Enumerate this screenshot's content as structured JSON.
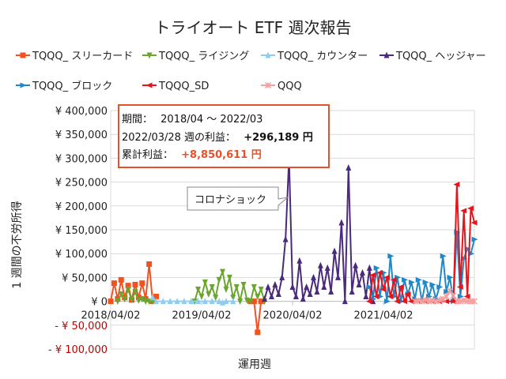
{
  "chart_data": {
    "type": "line",
    "title": "トライオート ETF 週次報告",
    "xlabel": "運用週",
    "ylabel": "1 週間の不労所得",
    "xlim": [
      "2018-04-02",
      "2022-03-28"
    ],
    "ylim": [
      -100000,
      400000
    ],
    "grid": true,
    "legend_placement": "top",
    "x_ticks": [
      {
        "date": "2018-04-02",
        "label": "2018/04/02"
      },
      {
        "date": "2019-04-01",
        "label": "2019/04/02"
      },
      {
        "date": "2020-03-30",
        "label": "2020/04/02"
      },
      {
        "date": "2021-03-29",
        "label": "2021/04/02"
      }
    ],
    "y_ticks": [
      {
        "value": 400000,
        "label": "¥ 400,000"
      },
      {
        "value": 350000,
        "label": "¥ 350,000"
      },
      {
        "value": 300000,
        "label": "¥ 300,000"
      },
      {
        "value": 250000,
        "label": "¥ 250,000"
      },
      {
        "value": 200000,
        "label": "¥ 200,000"
      },
      {
        "value": 150000,
        "label": "¥ 150,000"
      },
      {
        "value": 100000,
        "label": "¥ 100,000"
      },
      {
        "value": 50000,
        "label": "¥ 50,000"
      },
      {
        "value": 0,
        "label": "¥ 0"
      },
      {
        "value": -50000,
        "label": "- ¥ 50,000"
      },
      {
        "value": -100000,
        "label": "- ¥ 100,000"
      }
    ],
    "negative_label_color": "#c00000",
    "series": [
      {
        "name": "TQQQ_ スリーカード",
        "color": "#f4511e",
        "marker": "square",
        "points": [
          [
            "2018-04-02",
            0
          ],
          [
            "2018-04-16",
            38000
          ],
          [
            "2018-04-30",
            5000
          ],
          [
            "2018-05-14",
            45000
          ],
          [
            "2018-05-28",
            8000
          ],
          [
            "2018-06-11",
            33000
          ],
          [
            "2018-06-25",
            3000
          ],
          [
            "2018-07-09",
            35000
          ],
          [
            "2018-07-23",
            8000
          ],
          [
            "2018-08-06",
            38000
          ],
          [
            "2018-08-20",
            5000
          ],
          [
            "2018-09-03",
            78000
          ],
          [
            "2018-09-17",
            0
          ],
          [
            "2018-10-01",
            10000
          ],
          null,
          [
            "2019-10-14",
            0
          ],
          [
            "2019-10-28",
            0
          ],
          [
            "2019-11-11",
            -65000
          ],
          [
            "2019-11-25",
            0
          ]
        ]
      },
      {
        "name": "TQQQ_ ライジング",
        "color": "#6aa62e",
        "marker": "triangle-down",
        "points": [
          [
            "2018-04-30",
            0
          ],
          [
            "2018-05-14",
            15000
          ],
          [
            "2018-05-28",
            5000
          ],
          [
            "2018-06-11",
            25000
          ],
          [
            "2018-06-25",
            3000
          ],
          [
            "2018-07-09",
            20000
          ],
          [
            "2018-07-23",
            2000
          ],
          [
            "2018-08-06",
            5000
          ],
          [
            "2018-08-20",
            0
          ],
          [
            "2018-09-03",
            0
          ],
          [
            "2018-09-17",
            0
          ],
          null,
          [
            "2019-03-04",
            0
          ],
          [
            "2019-03-18",
            25000
          ],
          [
            "2019-04-01",
            10000
          ],
          [
            "2019-04-15",
            40000
          ],
          [
            "2019-04-29",
            15000
          ],
          [
            "2019-05-13",
            30000
          ],
          [
            "2019-05-27",
            8000
          ],
          [
            "2019-06-10",
            45000
          ],
          [
            "2019-06-24",
            62000
          ],
          [
            "2019-07-08",
            25000
          ],
          [
            "2019-07-22",
            50000
          ],
          [
            "2019-08-05",
            8000
          ],
          [
            "2019-08-19",
            30000
          ],
          [
            "2019-09-02",
            0
          ],
          [
            "2019-09-16",
            35000
          ],
          [
            "2019-09-30",
            2000
          ],
          [
            "2019-10-14",
            0
          ],
          [
            "2019-10-28",
            30000
          ],
          [
            "2019-11-11",
            10000
          ],
          [
            "2019-11-25",
            25000
          ],
          [
            "2019-12-09",
            0
          ]
        ]
      },
      {
        "name": "TQQQ_ カウンター",
        "color": "#8fcdf0",
        "marker": "triangle-up",
        "points": [
          [
            "2018-09-17",
            8000
          ],
          [
            "2018-10-01",
            0
          ],
          [
            "2018-10-29",
            0
          ],
          [
            "2018-11-26",
            0
          ],
          [
            "2018-12-24",
            0
          ],
          [
            "2019-01-21",
            0
          ],
          [
            "2019-02-18",
            0
          ],
          [
            "2019-03-18",
            0
          ],
          [
            "2019-04-15",
            0
          ],
          [
            "2019-05-13",
            0
          ],
          [
            "2019-06-10",
            0
          ],
          [
            "2019-06-24",
            -3000
          ],
          [
            "2019-07-08",
            0
          ],
          [
            "2019-08-05",
            0
          ]
        ]
      },
      {
        "name": "TQQQ_ ヘッジャー",
        "color": "#4b2a7b",
        "marker": "triangle-up",
        "points": [
          [
            "2019-12-09",
            5000
          ],
          [
            "2019-12-23",
            30000
          ],
          [
            "2020-01-06",
            10000
          ],
          [
            "2020-01-20",
            35000
          ],
          [
            "2020-02-03",
            15000
          ],
          [
            "2020-02-17",
            50000
          ],
          [
            "2020-03-02",
            130000
          ],
          [
            "2020-03-16",
            300000
          ],
          [
            "2020-03-30",
            30000
          ],
          [
            "2020-04-13",
            10000
          ],
          [
            "2020-04-27",
            85000
          ],
          [
            "2020-05-11",
            5000
          ],
          [
            "2020-05-25",
            30000
          ],
          [
            "2020-06-08",
            15000
          ],
          [
            "2020-06-22",
            50000
          ],
          [
            "2020-07-06",
            20000
          ],
          [
            "2020-07-20",
            75000
          ],
          [
            "2020-08-03",
            30000
          ],
          [
            "2020-08-17",
            70000
          ],
          [
            "2020-08-31",
            20000
          ],
          [
            "2020-09-14",
            105000
          ],
          [
            "2020-09-28",
            50000
          ],
          [
            "2020-10-12",
            165000
          ],
          [
            "2020-10-26",
            0
          ],
          [
            "2020-11-09",
            280000
          ],
          [
            "2020-11-23",
            20000
          ],
          [
            "2020-12-07",
            75000
          ],
          [
            "2020-12-21",
            35000
          ],
          [
            "2021-01-04",
            60000
          ],
          [
            "2021-01-18",
            10000
          ],
          [
            "2021-02-01",
            70000
          ],
          [
            "2021-02-15",
            0
          ]
        ]
      },
      {
        "name": "TQQQ_ ブロック",
        "color": "#1e88c8",
        "marker": "triangle-right",
        "points": [
          [
            "2021-02-01",
            30000
          ],
          [
            "2021-02-15",
            5000
          ],
          [
            "2021-03-01",
            70000
          ],
          [
            "2021-03-15",
            10000
          ],
          [
            "2021-03-29",
            60000
          ],
          [
            "2021-04-12",
            0
          ],
          [
            "2021-04-26",
            95000
          ],
          [
            "2021-05-10",
            10000
          ],
          [
            "2021-05-24",
            50000
          ],
          [
            "2021-06-07",
            0
          ],
          [
            "2021-06-21",
            45000
          ],
          [
            "2021-07-05",
            15000
          ],
          [
            "2021-07-19",
            40000
          ],
          [
            "2021-08-02",
            5000
          ],
          [
            "2021-08-16",
            45000
          ],
          [
            "2021-08-30",
            0
          ],
          [
            "2021-09-13",
            40000
          ],
          [
            "2021-09-27",
            10000
          ],
          [
            "2021-10-11",
            35000
          ],
          [
            "2021-10-25",
            5000
          ],
          [
            "2021-11-08",
            30000
          ],
          [
            "2021-11-22",
            95000
          ],
          [
            "2021-12-06",
            20000
          ],
          [
            "2021-12-20",
            50000
          ],
          [
            "2022-01-03",
            0
          ],
          [
            "2022-01-17",
            145000
          ],
          [
            "2022-01-31",
            10000
          ],
          [
            "2022-02-14",
            90000
          ],
          [
            "2022-02-28",
            110000
          ],
          [
            "2022-03-14",
            100000
          ],
          [
            "2022-03-28",
            130000
          ]
        ]
      },
      {
        "name": "TQQQ_SD",
        "color": "#e8141c",
        "marker": "triangle-left",
        "points": [
          [
            "2021-02-01",
            0
          ],
          [
            "2021-02-15",
            55000
          ],
          [
            "2021-03-01",
            10000
          ],
          [
            "2021-03-15",
            60000
          ],
          [
            "2021-03-29",
            25000
          ],
          [
            "2021-04-12",
            50000
          ],
          [
            "2021-04-26",
            10000
          ],
          [
            "2021-05-10",
            45000
          ],
          [
            "2021-05-24",
            0
          ],
          [
            "2021-06-07",
            30000
          ],
          [
            "2021-06-21",
            0
          ],
          [
            "2021-07-05",
            15000
          ],
          [
            "2021-07-19",
            0
          ],
          [
            "2021-08-16",
            0
          ],
          [
            "2021-09-13",
            0
          ],
          [
            "2021-10-11",
            0
          ],
          [
            "2021-11-08",
            0
          ],
          [
            "2021-12-06",
            0
          ],
          [
            "2022-01-03",
            0
          ],
          [
            "2022-01-17",
            245000
          ],
          [
            "2022-01-31",
            30000
          ],
          [
            "2022-02-14",
            190000
          ],
          [
            "2022-02-28",
            10000
          ],
          [
            "2022-03-14",
            195000
          ],
          [
            "2022-03-28",
            165000
          ]
        ]
      },
      {
        "name": "QQQ",
        "color": "#f4a0a0",
        "marker": "star",
        "points": [
          [
            "2021-08-02",
            0
          ],
          [
            "2021-08-16",
            2000
          ],
          [
            "2021-08-30",
            0
          ],
          [
            "2021-09-13",
            3000
          ],
          [
            "2021-09-27",
            0
          ],
          [
            "2021-10-11",
            2000
          ],
          [
            "2021-10-25",
            0
          ],
          [
            "2021-11-08",
            3000
          ],
          [
            "2021-11-22",
            5000
          ],
          [
            "2021-12-06",
            10000
          ],
          [
            "2021-12-20",
            22000
          ],
          [
            "2022-01-03",
            12000
          ],
          [
            "2022-01-17",
            0
          ],
          [
            "2022-01-31",
            0
          ],
          [
            "2022-02-14",
            2000
          ],
          [
            "2022-02-28",
            0
          ],
          [
            "2022-03-14",
            0
          ],
          [
            "2022-03-28",
            0
          ]
        ]
      }
    ],
    "annotations": {
      "summary": {
        "period_label": "期間：",
        "period_value": "2018/04 ～ 2022/03",
        "week_label": "2022/03/28 週の利益：",
        "week_value": "+296,189 円",
        "total_label": "累計利益：",
        "total_value": "+8,850,611 円",
        "accent_color": "#e8502a"
      },
      "callout": {
        "text": "コロナショック",
        "date": "2020-03-16"
      }
    }
  }
}
